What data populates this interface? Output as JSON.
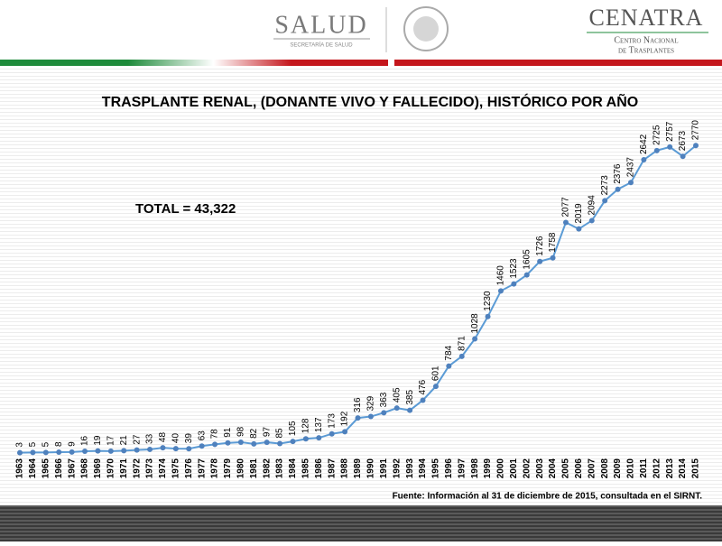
{
  "header": {
    "left_logo": "SALUD",
    "left_logo_sub": "SECRETARÍA DE SALUD",
    "right_logo": "CENATRA",
    "right_logo_sub_1": "Centro Nacional",
    "right_logo_sub_2": "de Trasplantes"
  },
  "chart_data": {
    "type": "line",
    "title": "TRASPLANTE RENAL, (DONANTE VIVO Y FALLECIDO), HISTÓRICO POR AÑO",
    "annotation": "TOTAL = 43,322",
    "source": "Fuente: Información al 31 de diciembre de 2015, consultada en el SIRNT.",
    "categories": [
      "1963",
      "1964",
      "1965",
      "1966",
      "1967",
      "1968",
      "1969",
      "1970",
      "1971",
      "1972",
      "1973",
      "1974",
      "1975",
      "1976",
      "1977",
      "1978",
      "1979",
      "1980",
      "1981",
      "1982",
      "1983",
      "1984",
      "1985",
      "1986",
      "1987",
      "1988",
      "1989",
      "1990",
      "1991",
      "1992",
      "1993",
      "1994",
      "1995",
      "1996",
      "1997",
      "1998",
      "1999",
      "2000",
      "2001",
      "2002",
      "2003",
      "2004",
      "2005",
      "2006",
      "2007",
      "2008",
      "2009",
      "2010",
      "2011",
      "2012",
      "2013",
      "2014",
      "2015"
    ],
    "series": [
      {
        "name": "Trasplante renal",
        "color": "#5b9bd5",
        "values": [
          3,
          5,
          5,
          8,
          9,
          16,
          19,
          17,
          21,
          27,
          33,
          48,
          40,
          39,
          63,
          78,
          91,
          98,
          82,
          97,
          85,
          105,
          128,
          137,
          173,
          192,
          316,
          329,
          363,
          405,
          385,
          476,
          601,
          784,
          871,
          1028,
          1230,
          1460,
          1523,
          1605,
          1726,
          1758,
          2077,
          2019,
          2094,
          2273,
          2376,
          2437,
          2642,
          2725,
          2757,
          2673,
          2770
        ]
      }
    ],
    "ylim": [
      0,
      3000
    ]
  }
}
